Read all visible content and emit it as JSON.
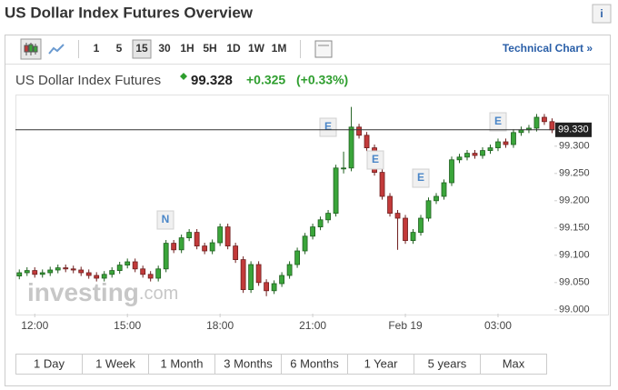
{
  "header": {
    "title": "US Dollar Index Futures Overview",
    "info_icon": "i"
  },
  "toolbar": {
    "intervals": [
      "1",
      "5",
      "15",
      "30",
      "1H",
      "5H",
      "1D",
      "1W",
      "1M"
    ],
    "selected": "15",
    "link": "Technical Chart »"
  },
  "quote": {
    "name": "US Dollar Index Futures",
    "price": "99.328",
    "change": "+0.325",
    "change_pct": "(+0.33%)"
  },
  "chart_data": {
    "type": "candlestick",
    "open": [
      99.062,
      99.068,
      99.072,
      99.065,
      99.068,
      99.073,
      99.077,
      99.075,
      99.073,
      99.068,
      99.063,
      99.058,
      99.065,
      99.072,
      99.082,
      99.088,
      99.075,
      99.065,
      99.058,
      99.075,
      99.122,
      99.11,
      99.132,
      99.142,
      99.117,
      99.108,
      99.123,
      99.152,
      99.117,
      99.092,
      99.037,
      99.083,
      99.05,
      99.035,
      99.048,
      99.063,
      99.083,
      99.108,
      99.135,
      99.152,
      99.165,
      99.177,
      99.26,
      99.26,
      99.335,
      99.32,
      99.297,
      99.252,
      99.208,
      99.177,
      99.168,
      99.127,
      99.142,
      99.168,
      99.2,
      99.208,
      99.233,
      99.275,
      99.28,
      99.287,
      99.283,
      99.292,
      99.297,
      99.308,
      99.303,
      99.325,
      99.33,
      99.333,
      99.353,
      99.345
    ],
    "high": [
      99.074,
      99.078,
      99.078,
      99.074,
      99.079,
      99.083,
      99.083,
      99.081,
      99.079,
      99.074,
      99.069,
      99.071,
      99.078,
      99.088,
      99.094,
      99.094,
      99.081,
      99.071,
      99.081,
      99.128,
      99.128,
      99.138,
      99.148,
      99.148,
      99.123,
      99.129,
      99.158,
      99.158,
      99.123,
      99.098,
      99.089,
      99.089,
      99.056,
      99.054,
      99.069,
      99.089,
      99.114,
      99.141,
      99.158,
      99.171,
      99.183,
      99.266,
      99.29,
      99.372,
      99.341,
      99.326,
      99.303,
      99.258,
      99.214,
      99.183,
      99.174,
      99.148,
      99.174,
      99.206,
      99.214,
      99.239,
      99.281,
      99.286,
      99.293,
      99.293,
      99.298,
      99.303,
      99.314,
      99.314,
      99.331,
      99.336,
      99.339,
      99.359,
      99.359,
      99.351
    ],
    "low": [
      99.056,
      99.062,
      99.059,
      99.059,
      99.062,
      99.067,
      99.069,
      99.067,
      99.062,
      99.057,
      99.052,
      99.052,
      99.059,
      99.066,
      99.076,
      99.069,
      99.059,
      99.052,
      99.052,
      99.069,
      99.104,
      99.104,
      99.126,
      99.111,
      99.102,
      99.102,
      99.117,
      99.111,
      99.086,
      99.031,
      99.031,
      99.044,
      99.025,
      99.029,
      99.042,
      99.057,
      99.077,
      99.102,
      99.129,
      99.146,
      99.159,
      99.171,
      99.25,
      99.254,
      99.314,
      99.291,
      99.246,
      99.202,
      99.171,
      99.11,
      99.121,
      99.121,
      99.136,
      99.162,
      99.194,
      99.202,
      99.227,
      99.269,
      99.274,
      99.277,
      99.277,
      99.286,
      99.291,
      99.297,
      99.297,
      99.319,
      99.324,
      99.327,
      99.339,
      99.324
    ],
    "close": [
      99.068,
      99.072,
      99.065,
      99.068,
      99.073,
      99.077,
      99.075,
      99.073,
      99.068,
      99.063,
      99.058,
      99.065,
      99.072,
      99.082,
      99.088,
      99.075,
      99.065,
      99.058,
      99.075,
      99.122,
      99.11,
      99.132,
      99.142,
      99.117,
      99.108,
      99.123,
      99.152,
      99.117,
      99.092,
      99.037,
      99.083,
      99.05,
      99.035,
      99.048,
      99.063,
      99.083,
      99.108,
      99.135,
      99.152,
      99.165,
      99.177,
      99.26,
      99.26,
      99.335,
      99.32,
      99.297,
      99.252,
      99.208,
      99.177,
      99.168,
      99.127,
      99.142,
      99.168,
      99.2,
      99.208,
      99.233,
      99.275,
      99.28,
      99.287,
      99.283,
      99.292,
      99.297,
      99.308,
      99.303,
      99.325,
      99.33,
      99.333,
      99.353,
      99.345,
      99.33
    ],
    "up_color": "#3aa53a",
    "down_color": "#c23a3a",
    "ylim": [
      98.993,
      99.393
    ],
    "yticks": [
      {
        "value": 99,
        "label": "99.000"
      },
      {
        "value": 99.05,
        "label": "99.050"
      },
      {
        "value": 99.1,
        "label": "99.100"
      },
      {
        "value": 99.15,
        "label": "99.150"
      },
      {
        "value": 99.2,
        "label": "99.200"
      },
      {
        "value": 99.25,
        "label": "99.250"
      },
      {
        "value": 99.3,
        "label": "99.300"
      }
    ],
    "xlim": [
      -0.5,
      69.3
    ],
    "xticks": [
      {
        "value": 2,
        "label": "12:00"
      },
      {
        "value": 14,
        "label": "15:00"
      },
      {
        "value": 26,
        "label": "18:00"
      },
      {
        "value": 38,
        "label": "21:00"
      },
      {
        "value": 50,
        "label": "Feb 19"
      },
      {
        "value": 62,
        "label": "03:00"
      }
    ],
    "current_price": {
      "value": 99.33,
      "label": "99.330"
    },
    "event_labels": [
      "N",
      "E",
      "E",
      "E",
      "E"
    ],
    "watermark": [
      "investing",
      ".com"
    ],
    "grid": false
  },
  "ranges": [
    "1 Day",
    "1 Week",
    "1 Month",
    "3 Months",
    "6 Months",
    "1 Year",
    "5 years",
    "Max"
  ]
}
